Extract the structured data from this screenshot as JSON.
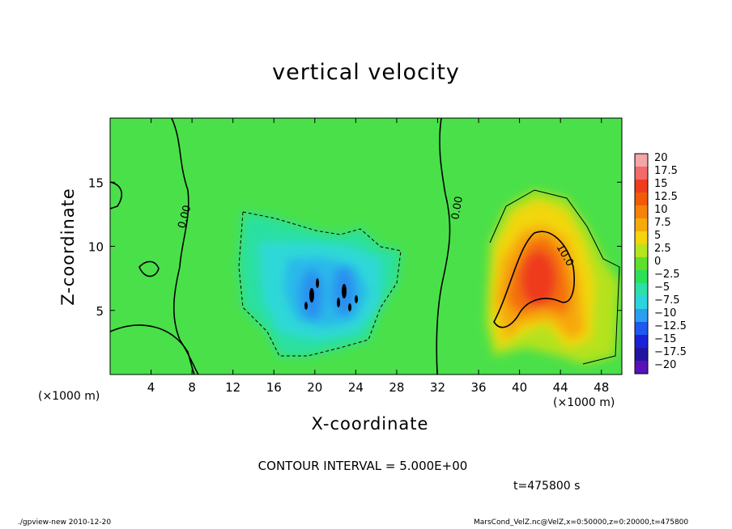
{
  "chart_data": {
    "type": "heatmap",
    "title": "vertical velocity",
    "xlabel": "X-coordinate",
    "ylabel": "Z-coordinate",
    "x_unit_label": "(×1000 m)",
    "xlim": [
      0,
      50
    ],
    "ylim": [
      0,
      20
    ],
    "x_ticks": [
      4,
      8,
      12,
      16,
      20,
      24,
      28,
      32,
      36,
      40,
      44,
      48
    ],
    "y_ticks": [
      5,
      10,
      15
    ],
    "colorbar": {
      "levels": [
        20,
        17.5,
        15,
        12.5,
        10,
        7.5,
        5,
        2.5,
        0,
        -2.5,
        -5,
        -7.5,
        -10,
        -12.5,
        -15,
        -17.5,
        -20
      ],
      "labels": [
        "20",
        "17.5",
        "15",
        "12.5",
        "10",
        "7.5",
        "5",
        "2.5",
        "0",
        "−2.5",
        "−5",
        "−7.5",
        "−10",
        "−12.5",
        "−15",
        "−17.5",
        "−20"
      ],
      "colors": [
        "#f4a5a5",
        "#f36a6a",
        "#f03c1f",
        "#f25a08",
        "#f6820a",
        "#f6aa0a",
        "#f4d40c",
        "#b7e41c",
        "#5fe02c",
        "#2ce05a",
        "#2ce0a8",
        "#2cd4e0",
        "#2c9ef0",
        "#1e58f0",
        "#1a22d8",
        "#2214a0",
        "#5a12b8"
      ]
    },
    "contour_labels": [
      "0.00",
      "0.00",
      "10.0"
    ],
    "features": [
      {
        "kind": "updraft_max",
        "x": 41.5,
        "z": 8.5,
        "value": 12.5
      },
      {
        "kind": "downdraft_min",
        "x": 20.0,
        "z": 6.5,
        "value": -10
      },
      {
        "kind": "downdraft_min",
        "x": 23.0,
        "z": 6.5,
        "value": -10
      }
    ],
    "contour_interval_text": "CONTOUR INTERVAL = 5.000E+00",
    "time_text": "t=475800  s"
  },
  "footer": {
    "left": "./gpview-new   2010-12-20",
    "right": "MarsCond_VelZ.nc@VelZ,x=0:50000,z=0:20000,t=475800"
  }
}
